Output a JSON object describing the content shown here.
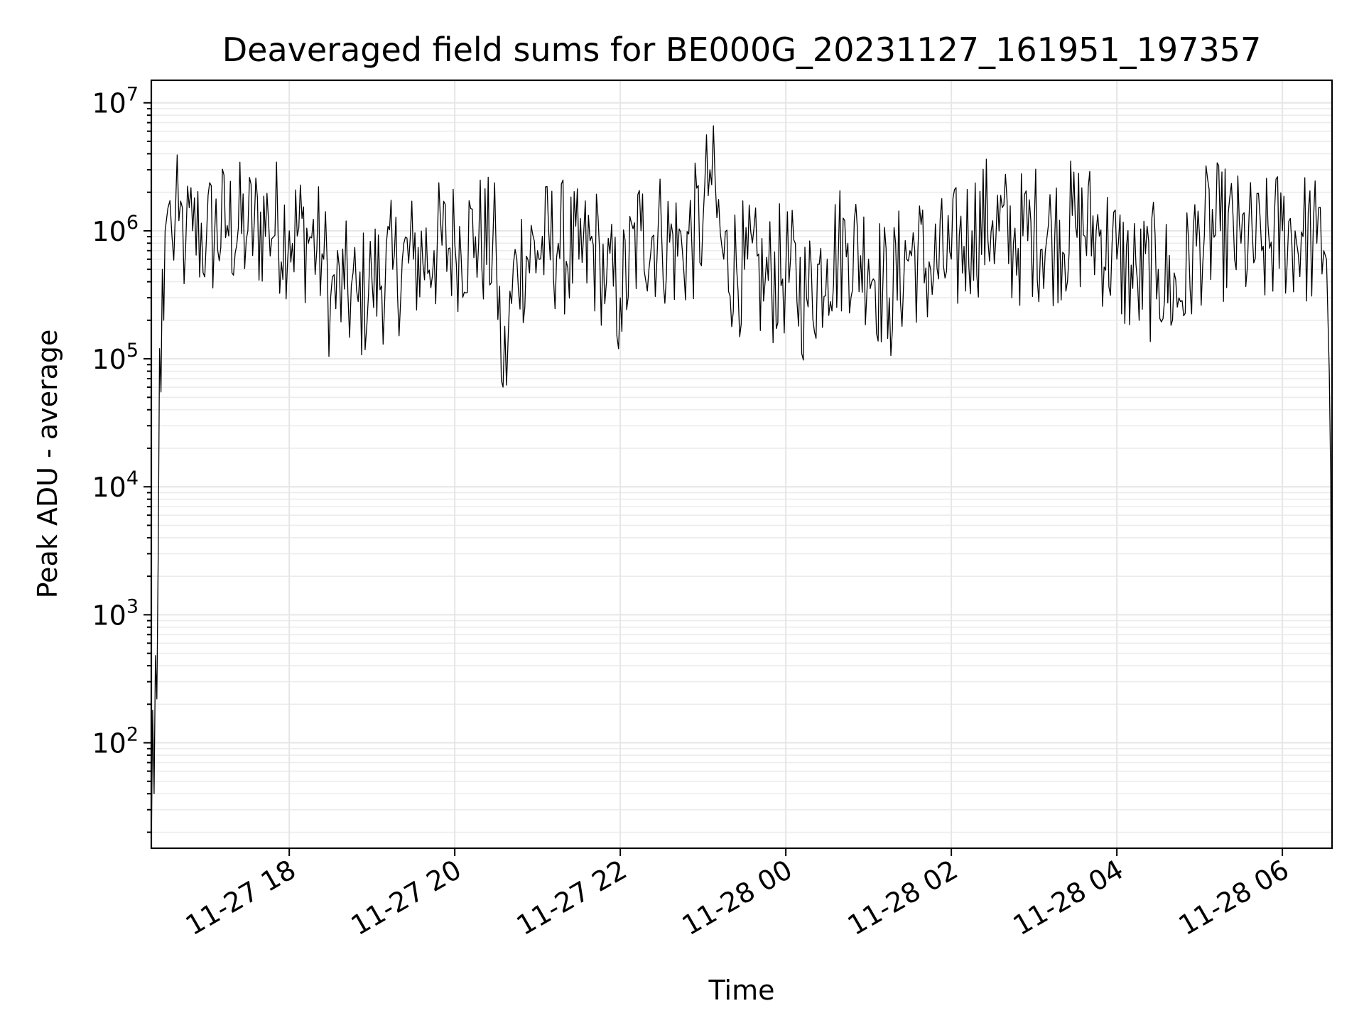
{
  "chart_data": {
    "type": "line",
    "title": "Deaveraged field sums for BE000G_20231127_161951_197357",
    "xlabel": "Time",
    "ylabel": "Peak ADU - average",
    "yscale": "log",
    "ylim": [
      15,
      15000000
    ],
    "xlim": [
      "2023-11-27 16:20",
      "2023-11-28 06:36"
    ],
    "grid": true,
    "line_color": "#000000",
    "x_ticks": [
      {
        "label": "11-27 18",
        "value": "2023-11-27 18:00"
      },
      {
        "label": "11-27 20",
        "value": "2023-11-27 20:00"
      },
      {
        "label": "11-27 22",
        "value": "2023-11-27 22:00"
      },
      {
        "label": "11-28 00",
        "value": "2023-11-28 00:00"
      },
      {
        "label": "11-28 02",
        "value": "2023-11-28 02:00"
      },
      {
        "label": "11-28 04",
        "value": "2023-11-28 04:00"
      },
      {
        "label": "11-28 06",
        "value": "2023-11-28 06:00"
      }
    ],
    "y_ticks": [
      {
        "base": "10",
        "exp": "2",
        "value": 100
      },
      {
        "base": "10",
        "exp": "3",
        "value": 1000
      },
      {
        "base": "10",
        "exp": "4",
        "value": 10000
      },
      {
        "base": "10",
        "exp": "5",
        "value": 100000
      },
      {
        "base": "10",
        "exp": "6",
        "value": 1000000
      },
      {
        "base": "10",
        "exp": "7",
        "value": 10000000
      }
    ],
    "series": [
      {
        "color": "#000000",
        "x": [
          "2023-11-27 16:20",
          "2023-11-27 16:21",
          "2023-11-27 16:22",
          "2023-11-27 16:23",
          "2023-11-27 16:24",
          "2023-11-27 16:25",
          "2023-11-27 16:26",
          "2023-11-27 16:27",
          "2023-11-27 16:28",
          "2023-11-27 16:29",
          "2023-11-27 16:30",
          "2023-11-27 16:32",
          "2023-11-27 16:35",
          "2023-11-27 16:40",
          "2023-11-27 16:45",
          "2023-11-27 16:50",
          "2023-11-27 17:00",
          "2023-11-27 17:15",
          "2023-11-27 17:30",
          "2023-11-27 17:45",
          "2023-11-27 18:00",
          "2023-11-27 18:15",
          "2023-11-27 18:25",
          "2023-11-27 18:30",
          "2023-11-27 18:40",
          "2023-11-27 18:50",
          "2023-11-27 19:00",
          "2023-11-27 19:15",
          "2023-11-27 19:30",
          "2023-11-27 19:45",
          "2023-11-27 20:00",
          "2023-11-27 20:15",
          "2023-11-27 20:30",
          "2023-11-27 20:35",
          "2023-11-27 20:45",
          "2023-11-27 21:00",
          "2023-11-27 21:15",
          "2023-11-27 21:30",
          "2023-11-27 21:45",
          "2023-11-27 21:50",
          "2023-11-27 22:00",
          "2023-11-27 22:15",
          "2023-11-27 22:30",
          "2023-11-27 22:45",
          "2023-11-27 23:00",
          "2023-11-27 23:05",
          "2023-11-27 23:15",
          "2023-11-27 23:30",
          "2023-11-27 23:45",
          "2023-11-28 00:00",
          "2023-11-28 00:15",
          "2023-11-28 00:30",
          "2023-11-28 00:45",
          "2023-11-28 01:00",
          "2023-11-28 01:15",
          "2023-11-28 01:30",
          "2023-11-28 01:45",
          "2023-11-28 02:00",
          "2023-11-28 02:15",
          "2023-11-28 02:30",
          "2023-11-28 02:45",
          "2023-11-28 03:00",
          "2023-11-28 03:15",
          "2023-11-28 03:30",
          "2023-11-28 03:45",
          "2023-11-28 04:00",
          "2023-11-28 04:15",
          "2023-11-28 04:30",
          "2023-11-28 04:45",
          "2023-11-28 05:00",
          "2023-11-28 05:15",
          "2023-11-28 05:30",
          "2023-11-28 05:45",
          "2023-11-28 06:00",
          "2023-11-28 06:15",
          "2023-11-28 06:25",
          "2023-11-28 06:30",
          "2023-11-28 06:32",
          "2023-11-28 06:34",
          "2023-11-28 06:35",
          "2023-11-28 06:36"
        ],
        "y": [
          15,
          180,
          40,
          480,
          220,
          3000,
          120000,
          55000,
          500000,
          200000,
          1000000,
          1500000,
          900000,
          1200000,
          800000,
          1000000,
          900000,
          1100000,
          1000000,
          1200000,
          1000000,
          900000,
          600000,
          300000,
          350000,
          280000,
          400000,
          500000,
          600000,
          700000,
          800000,
          900000,
          700000,
          60000,
          600000,
          700000,
          800000,
          600000,
          700000,
          400000,
          300000,
          1000000,
          900000,
          700000,
          1200000,
          3000000,
          600000,
          500000,
          400000,
          500000,
          300000,
          600000,
          800000,
          600000,
          300000,
          700000,
          500000,
          600000,
          1000000,
          1200000,
          800000,
          1000000,
          900000,
          1100000,
          1000000,
          600000,
          400000,
          500000,
          300000,
          900000,
          1000000,
          800000,
          700000,
          1000000,
          900000,
          800000,
          700000,
          600000,
          80000,
          12000,
          50
        ]
      }
    ]
  }
}
